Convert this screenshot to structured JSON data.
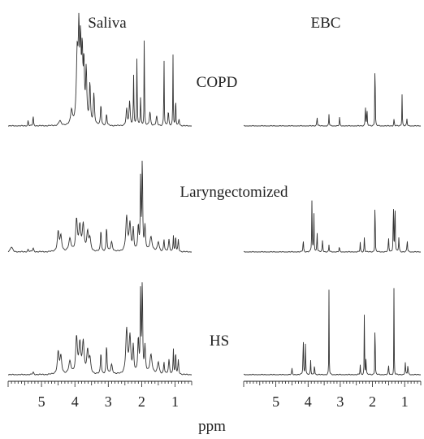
{
  "chart_data": {
    "type": "line",
    "title": "",
    "columns": [
      "Saliva",
      "EBC"
    ],
    "rows": [
      "COPD",
      "Laryngectomized",
      "HS"
    ],
    "xlabel": "ppm",
    "x_reversed": true,
    "xlim": [
      6.0,
      0.5
    ],
    "xticks": [
      5,
      4,
      3,
      2,
      1
    ],
    "xtick_labels": [
      "5",
      "4",
      "3",
      "2",
      "1"
    ],
    "y_units": "relative intensity (0-1)",
    "panels": [
      {
        "column": "Saliva",
        "row": "COPD",
        "peaks": [
          {
            "ppm": 5.4,
            "height": 0.05,
            "width": 0.01
          },
          {
            "ppm": 5.25,
            "height": 0.09,
            "width": 0.01
          },
          {
            "ppm": 4.45,
            "height": 0.04,
            "width": 0.04
          },
          {
            "ppm": 4.1,
            "height": 0.12,
            "width": 0.03
          },
          {
            "ppm": 3.93,
            "height": 0.58,
            "width": 0.03
          },
          {
            "ppm": 3.88,
            "height": 0.68,
            "width": 0.02
          },
          {
            "ppm": 3.83,
            "height": 0.62,
            "width": 0.02
          },
          {
            "ppm": 3.78,
            "height": 0.55,
            "width": 0.02
          },
          {
            "ppm": 3.73,
            "height": 0.48,
            "width": 0.02
          },
          {
            "ppm": 3.66,
            "height": 0.45,
            "width": 0.02
          },
          {
            "ppm": 3.55,
            "height": 0.34,
            "width": 0.02
          },
          {
            "ppm": 3.43,
            "height": 0.26,
            "width": 0.02
          },
          {
            "ppm": 3.22,
            "height": 0.18,
            "width": 0.015
          },
          {
            "ppm": 3.05,
            "height": 0.1,
            "width": 0.015
          },
          {
            "ppm": 2.45,
            "height": 0.14,
            "width": 0.02
          },
          {
            "ppm": 2.36,
            "height": 0.2,
            "width": 0.02
          },
          {
            "ppm": 2.24,
            "height": 0.42,
            "width": 0.01
          },
          {
            "ppm": 2.14,
            "height": 0.62,
            "width": 0.008
          },
          {
            "ppm": 2.03,
            "height": 0.26,
            "width": 0.01
          },
          {
            "ppm": 1.92,
            "height": 0.98,
            "width": 0.006
          },
          {
            "ppm": 1.75,
            "height": 0.12,
            "width": 0.02
          },
          {
            "ppm": 1.55,
            "height": 0.08,
            "width": 0.02
          },
          {
            "ppm": 1.33,
            "height": 0.62,
            "width": 0.007
          },
          {
            "ppm": 1.2,
            "height": 0.12,
            "width": 0.015
          },
          {
            "ppm": 1.06,
            "height": 0.6,
            "width": 0.007
          },
          {
            "ppm": 0.98,
            "height": 0.3,
            "width": 0.007
          },
          {
            "ppm": 0.88,
            "height": 0.06,
            "width": 0.015
          }
        ]
      },
      {
        "column": "Saliva",
        "row": "Laryngectomized",
        "peaks": [
          {
            "ppm": 5.9,
            "height": 0.04,
            "width": 0.04
          },
          {
            "ppm": 5.4,
            "height": 0.02,
            "width": 0.02
          },
          {
            "ppm": 5.25,
            "height": 0.03,
            "width": 0.02
          },
          {
            "ppm": 4.5,
            "height": 0.16,
            "width": 0.03
          },
          {
            "ppm": 4.42,
            "height": 0.12,
            "width": 0.03
          },
          {
            "ppm": 4.15,
            "height": 0.1,
            "width": 0.04
          },
          {
            "ppm": 3.95,
            "height": 0.26,
            "width": 0.03
          },
          {
            "ppm": 3.85,
            "height": 0.2,
            "width": 0.03
          },
          {
            "ppm": 3.75,
            "height": 0.22,
            "width": 0.03
          },
          {
            "ppm": 3.62,
            "height": 0.15,
            "width": 0.03
          },
          {
            "ppm": 3.55,
            "height": 0.1,
            "width": 0.03
          },
          {
            "ppm": 3.22,
            "height": 0.18,
            "width": 0.015
          },
          {
            "ppm": 3.05,
            "height": 0.2,
            "width": 0.015
          },
          {
            "ppm": 2.9,
            "height": 0.08,
            "width": 0.03
          },
          {
            "ppm": 2.45,
            "height": 0.28,
            "width": 0.03
          },
          {
            "ppm": 2.35,
            "height": 0.22,
            "width": 0.03
          },
          {
            "ppm": 2.25,
            "height": 0.18,
            "width": 0.02
          },
          {
            "ppm": 2.1,
            "height": 0.2,
            "width": 0.02
          },
          {
            "ppm": 2.03,
            "height": 0.62,
            "width": 0.012
          },
          {
            "ppm": 1.98,
            "height": 0.78,
            "width": 0.012
          },
          {
            "ppm": 1.9,
            "height": 0.2,
            "width": 0.02
          },
          {
            "ppm": 1.72,
            "height": 0.12,
            "width": 0.04
          },
          {
            "ppm": 1.5,
            "height": 0.08,
            "width": 0.03
          },
          {
            "ppm": 1.33,
            "height": 0.1,
            "width": 0.015
          },
          {
            "ppm": 1.18,
            "height": 0.1,
            "width": 0.02
          },
          {
            "ppm": 1.05,
            "height": 0.14,
            "width": 0.01
          },
          {
            "ppm": 0.98,
            "height": 0.14,
            "width": 0.01
          },
          {
            "ppm": 0.9,
            "height": 0.1,
            "width": 0.015
          }
        ]
      },
      {
        "column": "Saliva",
        "row": "HS",
        "peaks": [
          {
            "ppm": 5.25,
            "height": 0.02,
            "width": 0.02
          },
          {
            "ppm": 4.5,
            "height": 0.18,
            "width": 0.03
          },
          {
            "ppm": 4.42,
            "height": 0.14,
            "width": 0.03
          },
          {
            "ppm": 4.15,
            "height": 0.1,
            "width": 0.04
          },
          {
            "ppm": 3.95,
            "height": 0.3,
            "width": 0.03
          },
          {
            "ppm": 3.85,
            "height": 0.24,
            "width": 0.03
          },
          {
            "ppm": 3.75,
            "height": 0.26,
            "width": 0.03
          },
          {
            "ppm": 3.62,
            "height": 0.18,
            "width": 0.03
          },
          {
            "ppm": 3.55,
            "height": 0.12,
            "width": 0.03
          },
          {
            "ppm": 3.22,
            "height": 0.18,
            "width": 0.015
          },
          {
            "ppm": 3.05,
            "height": 0.24,
            "width": 0.015
          },
          {
            "ppm": 2.9,
            "height": 0.08,
            "width": 0.03
          },
          {
            "ppm": 2.45,
            "height": 0.36,
            "width": 0.03
          },
          {
            "ppm": 2.35,
            "height": 0.3,
            "width": 0.03
          },
          {
            "ppm": 2.25,
            "height": 0.22,
            "width": 0.02
          },
          {
            "ppm": 2.1,
            "height": 0.28,
            "width": 0.02
          },
          {
            "ppm": 2.03,
            "height": 0.7,
            "width": 0.012
          },
          {
            "ppm": 1.98,
            "height": 0.78,
            "width": 0.012
          },
          {
            "ppm": 1.9,
            "height": 0.22,
            "width": 0.02
          },
          {
            "ppm": 1.72,
            "height": 0.16,
            "width": 0.04
          },
          {
            "ppm": 1.5,
            "height": 0.1,
            "width": 0.03
          },
          {
            "ppm": 1.33,
            "height": 0.1,
            "width": 0.015
          },
          {
            "ppm": 1.18,
            "height": 0.12,
            "width": 0.02
          },
          {
            "ppm": 1.05,
            "height": 0.22,
            "width": 0.01
          },
          {
            "ppm": 0.98,
            "height": 0.2,
            "width": 0.01
          },
          {
            "ppm": 0.9,
            "height": 0.12,
            "width": 0.015
          }
        ]
      },
      {
        "column": "EBC",
        "row": "COPD",
        "peaks": [
          {
            "ppm": 3.72,
            "height": 0.08,
            "width": 0.01
          },
          {
            "ppm": 3.35,
            "height": 0.1,
            "width": 0.008
          },
          {
            "ppm": 3.02,
            "height": 0.08,
            "width": 0.008
          },
          {
            "ppm": 2.22,
            "height": 0.2,
            "width": 0.008
          },
          {
            "ppm": 2.17,
            "height": 0.16,
            "width": 0.008
          },
          {
            "ppm": 1.92,
            "height": 0.98,
            "width": 0.005
          },
          {
            "ppm": 1.33,
            "height": 0.06,
            "width": 0.01
          },
          {
            "ppm": 1.08,
            "height": 0.27,
            "width": 0.007
          },
          {
            "ppm": 0.93,
            "height": 0.06,
            "width": 0.01
          }
        ]
      },
      {
        "column": "EBC",
        "row": "Laryngectomized",
        "peaks": [
          {
            "ppm": 4.15,
            "height": 0.1,
            "width": 0.01
          },
          {
            "ppm": 3.88,
            "height": 0.42,
            "width": 0.008
          },
          {
            "ppm": 3.82,
            "height": 0.34,
            "width": 0.008
          },
          {
            "ppm": 3.72,
            "height": 0.18,
            "width": 0.008
          },
          {
            "ppm": 3.55,
            "height": 0.1,
            "width": 0.01
          },
          {
            "ppm": 3.35,
            "height": 0.06,
            "width": 0.008
          },
          {
            "ppm": 3.03,
            "height": 0.05,
            "width": 0.008
          },
          {
            "ppm": 2.38,
            "height": 0.08,
            "width": 0.008
          },
          {
            "ppm": 2.25,
            "height": 0.14,
            "width": 0.008
          },
          {
            "ppm": 1.92,
            "height": 1.0,
            "width": 0.004
          },
          {
            "ppm": 1.5,
            "height": 0.12,
            "width": 0.01
          },
          {
            "ppm": 1.35,
            "height": 0.5,
            "width": 0.007
          },
          {
            "ppm": 1.3,
            "height": 0.52,
            "width": 0.007
          },
          {
            "ppm": 1.18,
            "height": 0.12,
            "width": 0.01
          },
          {
            "ppm": 0.92,
            "height": 0.1,
            "width": 0.01
          }
        ]
      },
      {
        "column": "EBC",
        "row": "HS",
        "peaks": [
          {
            "ppm": 4.5,
            "height": 0.05,
            "width": 0.01
          },
          {
            "ppm": 4.15,
            "height": 0.34,
            "width": 0.008
          },
          {
            "ppm": 4.08,
            "height": 0.28,
            "width": 0.008
          },
          {
            "ppm": 3.92,
            "height": 0.12,
            "width": 0.008
          },
          {
            "ppm": 3.8,
            "height": 0.1,
            "width": 0.008
          },
          {
            "ppm": 3.35,
            "height": 0.72,
            "width": 0.005
          },
          {
            "ppm": 2.38,
            "height": 0.08,
            "width": 0.008
          },
          {
            "ppm": 2.25,
            "height": 0.72,
            "width": 0.005
          },
          {
            "ppm": 2.2,
            "height": 0.14,
            "width": 0.008
          },
          {
            "ppm": 1.92,
            "height": 1.0,
            "width": 0.004
          },
          {
            "ppm": 1.5,
            "height": 0.08,
            "width": 0.01
          },
          {
            "ppm": 1.33,
            "height": 1.0,
            "width": 0.004
          },
          {
            "ppm": 0.98,
            "height": 0.1,
            "width": 0.01
          },
          {
            "ppm": 0.9,
            "height": 0.08,
            "width": 0.01
          }
        ]
      }
    ]
  }
}
